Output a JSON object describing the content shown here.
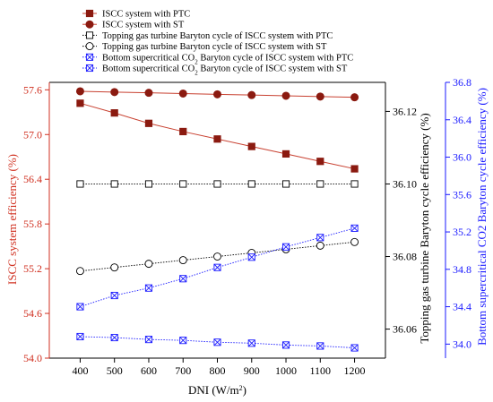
{
  "chart_data": {
    "type": "line",
    "x": [
      400,
      500,
      600,
      700,
      800,
      900,
      1000,
      1100,
      1200
    ],
    "xlabel": "DNI (W/m²)",
    "xticks": [
      "400",
      "500",
      "600",
      "700",
      "800",
      "900",
      "1000",
      "1100",
      "1200"
    ],
    "xlim": [
      310,
      1290
    ],
    "axes": [
      {
        "id": "left",
        "label": "ISCC system efficiency (%)",
        "color": "#d03020",
        "ylim": [
          54.0,
          57.7
        ],
        "ticks": [
          "54.0",
          "54.6",
          "55.2",
          "55.8",
          "56.4",
          "57.0",
          "57.6"
        ]
      },
      {
        "id": "right1",
        "label": "Topping gas turbine Baryton cycle efficiency (%)",
        "color": "#000000",
        "ylim": [
          36.052,
          36.128
        ],
        "ticks": [
          "36.06",
          "36.08",
          "36.10",
          "36.12"
        ]
      },
      {
        "id": "right2",
        "label": "Bottom supercritical CO2 Baryton cycle efficiency (%)",
        "color": "#1a1aff",
        "ylim": [
          33.85,
          36.8
        ],
        "ticks": [
          "34.0",
          "34.4",
          "34.8",
          "35.2",
          "35.6",
          "36.0",
          "36.4",
          "36.8"
        ]
      }
    ],
    "series": [
      {
        "name": "ISCC system with PTC",
        "legend_html": "ISCC system with PTC",
        "axis": "left",
        "marker": "filled-square",
        "line": "solid",
        "color": "#b02a1a",
        "values": [
          57.42,
          57.29,
          57.15,
          57.04,
          56.94,
          56.84,
          56.74,
          56.64,
          56.54
        ]
      },
      {
        "name": "ISCC system with ST",
        "legend_html": "ISCC system with ST",
        "axis": "left",
        "marker": "filled-circle",
        "line": "solid",
        "color": "#b02a1a",
        "values": [
          57.58,
          57.57,
          57.56,
          57.55,
          57.54,
          57.53,
          57.52,
          57.51,
          57.5
        ]
      },
      {
        "name": "Topping gas turbine Baryton cycle of ISCC system with PTC",
        "legend_html": "Topping gas turbine Baryton  cycle of ISCC system with PTC",
        "axis": "right1",
        "marker": "open-square",
        "line": "dotted",
        "color": "#000000",
        "values": [
          36.1,
          36.1,
          36.1,
          36.1,
          36.1,
          36.1,
          36.1,
          36.1,
          36.1
        ]
      },
      {
        "name": "Topping gas turbine Baryton cycle of ISCC system with ST",
        "legend_html": "Topping gas turbine Baryton  cycle of ISCC system with ST",
        "axis": "right1",
        "marker": "open-circle",
        "line": "dotted",
        "color": "#000000",
        "values": [
          36.076,
          36.077,
          36.078,
          36.079,
          36.08,
          36.081,
          36.082,
          36.083,
          36.084
        ]
      },
      {
        "name": "Bottom supercritical CO2 Baryton cycle of ISCC system with PTC",
        "legend_html": "Bottom supercritical CO<tspan baseline-shift='sub' font-size='7'>2</tspan> Baryton cycle of ISCC system with PTC",
        "axis": "right2",
        "marker": "x-box",
        "line": "dotted",
        "color": "#1a1aff",
        "values": [
          34.4,
          34.52,
          34.6,
          34.7,
          34.82,
          34.93,
          35.04,
          35.14,
          35.24
        ]
      },
      {
        "name": "Bottom supercritical CO2 Baryton cycle of ISCC system with ST",
        "legend_html": "Bottom supercritical CO<tspan baseline-shift='sub' font-size='7'>2</tspan> Baryton cycle of ISCC system with ST",
        "axis": "right2",
        "marker": "x-box",
        "line": "dotted",
        "color": "#1a1aff",
        "values": [
          34.08,
          34.07,
          34.05,
          34.04,
          34.02,
          34.01,
          33.99,
          33.98,
          33.96
        ]
      }
    ]
  }
}
